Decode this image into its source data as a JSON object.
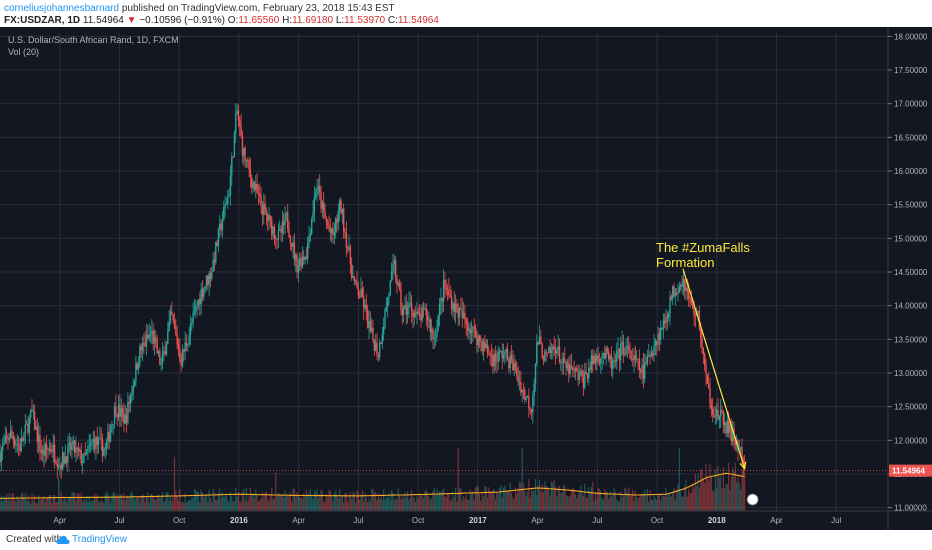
{
  "header": {
    "author": "corneliusjohannesbarnard",
    "published": "published on TradingView.com, February 23, 2018 15:43 EST",
    "symbol": "FX:USDZAR, 1D",
    "last": "11.54964",
    "change": "−0.10596 (−0.91%)",
    "open_label": "O:",
    "open": "11.65560",
    "high_label": "H:",
    "high": "11.69180",
    "low_label": "L:",
    "low": "11.53970",
    "close_label": "C:",
    "close": "11.54964"
  },
  "legend": {
    "title": "U.S. Dollar/South African Rand, 1D, FXCM",
    "volume": "Vol (20)"
  },
  "footer": {
    "created_with": "Created with",
    "brand": "TradingView"
  },
  "colors": {
    "background": "#131722",
    "up": "#26a69a",
    "down": "#ef5350",
    "volume_ma": "#f5a623",
    "annotation": "#ffeb3b",
    "last_price": "#ef5350"
  },
  "chart_data": {
    "type": "candlestick",
    "x_ticks": [
      "Apr",
      "Jul",
      "Oct",
      "2016",
      "Apr",
      "Jul",
      "Oct",
      "2017",
      "Apr",
      "Jul",
      "Oct",
      "2018",
      "Apr",
      "Jul"
    ],
    "x_tick_positions_months": [
      3,
      6,
      9,
      12,
      15,
      18,
      21,
      24,
      27,
      30,
      33,
      36,
      39,
      42
    ],
    "y_ticks": [
      "11.00000",
      "11.50000",
      "12.00000",
      "12.50000",
      "13.00000",
      "13.50000",
      "14.00000",
      "14.50000",
      "15.00000",
      "15.50000",
      "16.00000",
      "16.50000",
      "17.00000",
      "17.50000",
      "18.00000"
    ],
    "ylim": [
      10.95,
      18.05
    ],
    "xlim_months": [
      0,
      44.6
    ],
    "last_price_label": "11.54964",
    "last_price": 11.54964,
    "annotation": {
      "line1": "The #ZumaFalls",
      "line2": "Formation"
    },
    "trend_arrow": {
      "from": {
        "month": 34.3,
        "price": 14.55
      },
      "to": {
        "month": 37.4,
        "price": 11.58
      }
    },
    "price_path": [
      [
        0,
        11.8
      ],
      [
        0.5,
        12.1
      ],
      [
        1,
        11.9
      ],
      [
        1.6,
        12.4
      ],
      [
        2.1,
        11.8
      ],
      [
        2.6,
        11.9
      ],
      [
        3,
        11.65
      ],
      [
        3.6,
        11.9
      ],
      [
        4.2,
        11.7
      ],
      [
        4.7,
        12.0
      ],
      [
        5.3,
        11.85
      ],
      [
        5.8,
        12.5
      ],
      [
        6.3,
        12.3
      ],
      [
        7,
        13.3
      ],
      [
        7.6,
        13.6
      ],
      [
        8.1,
        13.1
      ],
      [
        8.6,
        13.85
      ],
      [
        9.1,
        13.2
      ],
      [
        9.6,
        13.7
      ],
      [
        10.1,
        14.2
      ],
      [
        10.6,
        14.5
      ],
      [
        11.1,
        15.2
      ],
      [
        11.5,
        15.7
      ],
      [
        11.9,
        16.9
      ],
      [
        12.2,
        16.3
      ],
      [
        12.6,
        15.9
      ],
      [
        13.1,
        15.5
      ],
      [
        13.6,
        15.2
      ],
      [
        14,
        15.0
      ],
      [
        14.4,
        15.3
      ],
      [
        14.9,
        14.6
      ],
      [
        15.4,
        14.8
      ],
      [
        15.9,
        15.8
      ],
      [
        16.3,
        15.3
      ],
      [
        16.7,
        15.0
      ],
      [
        17.1,
        15.5
      ],
      [
        17.5,
        14.8
      ],
      [
        17.8,
        14.3
      ],
      [
        18.2,
        14.1
      ],
      [
        18.6,
        13.6
      ],
      [
        19,
        13.3
      ],
      [
        19.4,
        14.0
      ],
      [
        19.8,
        14.6
      ],
      [
        20.2,
        13.9
      ],
      [
        20.6,
        14.0
      ],
      [
        21,
        13.8
      ],
      [
        21.4,
        13.9
      ],
      [
        21.8,
        13.5
      ],
      [
        22.3,
        14.3
      ],
      [
        22.8,
        14.0
      ],
      [
        23.3,
        13.8
      ],
      [
        23.8,
        13.6
      ],
      [
        24.3,
        13.4
      ],
      [
        24.8,
        13.2
      ],
      [
        25.3,
        13.3
      ],
      [
        25.8,
        13.1
      ],
      [
        26.3,
        12.7
      ],
      [
        26.7,
        12.5
      ],
      [
        27,
        13.5
      ],
      [
        27.4,
        13.2
      ],
      [
        27.9,
        13.4
      ],
      [
        28.3,
        13.1
      ],
      [
        28.8,
        13.0
      ],
      [
        29.3,
        12.9
      ],
      [
        29.8,
        13.2
      ],
      [
        30.3,
        13.3
      ],
      [
        30.8,
        13.1
      ],
      [
        31.3,
        13.4
      ],
      [
        31.8,
        13.2
      ],
      [
        32.3,
        13.0
      ],
      [
        32.8,
        13.4
      ],
      [
        33.3,
        13.7
      ],
      [
        33.8,
        14.2
      ],
      [
        34.3,
        14.4
      ],
      [
        34.7,
        14.0
      ],
      [
        35.1,
        13.8
      ],
      [
        35.5,
        12.8
      ],
      [
        35.9,
        12.4
      ],
      [
        36.3,
        12.3
      ],
      [
        36.7,
        12.1
      ],
      [
        37.1,
        11.9
      ],
      [
        37.4,
        11.55
      ]
    ],
    "volume_ma_path": [
      [
        0,
        0.3
      ],
      [
        3,
        0.32
      ],
      [
        6,
        0.33
      ],
      [
        9,
        0.36
      ],
      [
        12,
        0.4
      ],
      [
        15,
        0.37
      ],
      [
        18,
        0.36
      ],
      [
        21,
        0.39
      ],
      [
        23,
        0.42
      ],
      [
        25,
        0.45
      ],
      [
        27,
        0.55
      ],
      [
        28.5,
        0.5
      ],
      [
        30,
        0.42
      ],
      [
        32,
        0.38
      ],
      [
        33.5,
        0.4
      ],
      [
        34.5,
        0.55
      ],
      [
        35.5,
        0.8
      ],
      [
        36.5,
        0.9
      ],
      [
        37.4,
        0.82
      ]
    ]
  }
}
